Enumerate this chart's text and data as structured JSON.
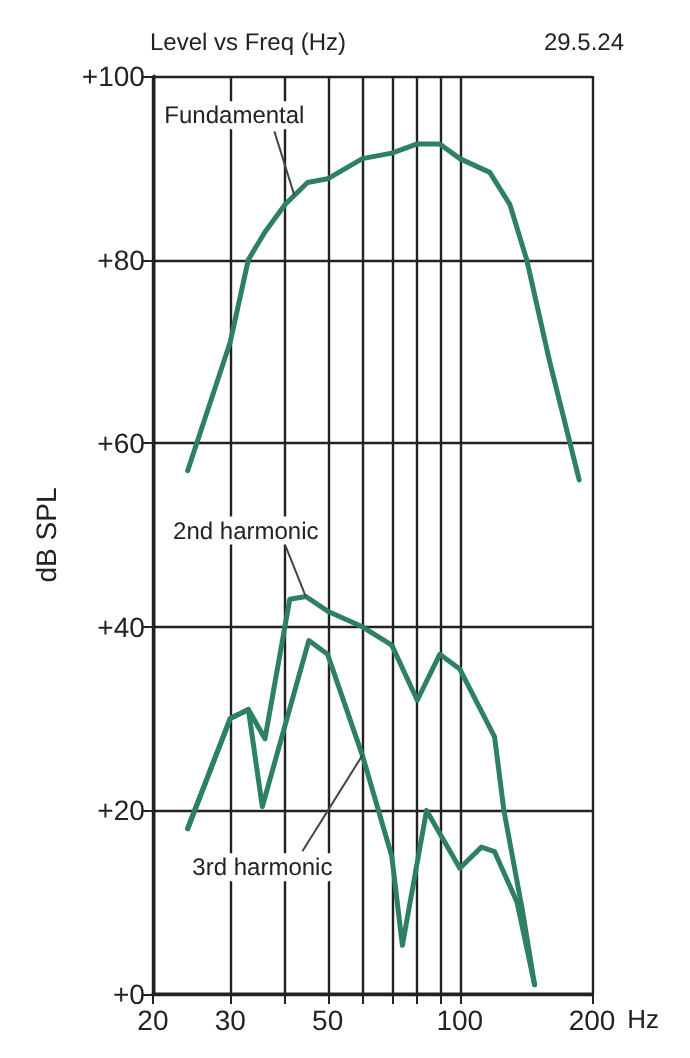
{
  "chart_data": {
    "type": "line",
    "title": "Level vs Freq (Hz)",
    "xlabel": "Hz",
    "ylabel": "dB SPL",
    "log": "x",
    "grid": true,
    "marker": "none",
    "line_style": "solid",
    "xlim": [
      20,
      200
    ],
    "xticks": [
      20,
      30,
      {
        "value": 40,
        "label": null
      },
      50,
      {
        "value": 60,
        "label": null
      },
      {
        "value": 70,
        "label": null
      },
      {
        "value": 80,
        "label": null
      },
      {
        "value": 90,
        "label": null
      },
      100,
      200
    ],
    "ylim": [
      0,
      100
    ],
    "yticks": [
      {
        "value": 0,
        "label": "+0"
      },
      {
        "value": 20,
        "label": "+20"
      },
      {
        "value": 40,
        "label": "+40"
      },
      {
        "value": 60,
        "label": "+60"
      },
      {
        "value": 80,
        "label": "+80"
      },
      {
        "value": 100,
        "label": "+100"
      }
    ],
    "series": [
      {
        "color": "#2e8064",
        "x": [
          24,
          30,
          33,
          36,
          40,
          45,
          50,
          60,
          70,
          80,
          90,
          100,
          117,
          130,
          142,
          160,
          187
        ],
        "values": [
          57,
          71,
          80,
          83,
          86,
          88.4,
          88.8,
          91,
          91.6,
          92.6,
          92.6,
          91,
          89.5,
          86,
          80,
          69,
          56
        ]
      },
      {
        "color": "#2e8064",
        "x": [
          24,
          30,
          33,
          36,
          41,
          44.6,
          50,
          60,
          70,
          80,
          90,
          100,
          120,
          126,
          139,
          148
        ],
        "values": [
          18,
          30,
          31,
          27.8,
          43,
          43.3,
          41.7,
          40,
          38,
          32,
          37,
          35.4,
          28,
          20,
          9,
          1
        ]
      },
      {
        "color": "#2e8064",
        "x": [
          24,
          30,
          33,
          35.5,
          45.3,
          50,
          60,
          70,
          74,
          84,
          100,
          112,
          120,
          135,
          148
        ],
        "values": [
          18,
          30,
          31,
          20.4,
          38.5,
          37,
          26,
          15,
          5.3,
          20,
          13.7,
          16,
          15.5,
          10,
          1
        ]
      }
    ],
    "annotations": [
      "29.5.24",
      {
        "text": "Fundamental",
        "x": 42,
        "y": 87
      },
      {
        "text": "2nd harmonic",
        "x": 44.6,
        "y": 43.3
      },
      {
        "text": "3rd harmonic",
        "x": 60,
        "y": 26
      }
    ]
  }
}
